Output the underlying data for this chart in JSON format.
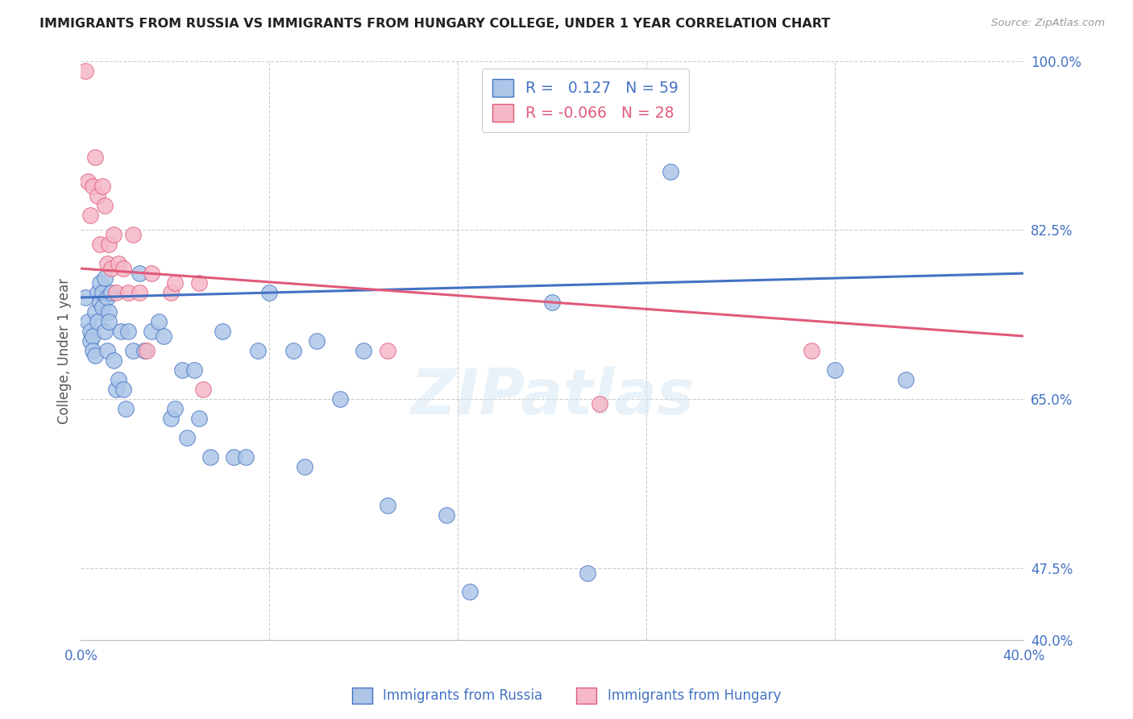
{
  "title": "IMMIGRANTS FROM RUSSIA VS IMMIGRANTS FROM HUNGARY COLLEGE, UNDER 1 YEAR CORRELATION CHART",
  "source": "Source: ZipAtlas.com",
  "ylabel": "College, Under 1 year",
  "x_min": 0.0,
  "x_max": 0.4,
  "y_min": 0.4,
  "y_max": 1.0,
  "color_russia": "#adc6e8",
  "color_hungary": "#f5b8c8",
  "color_russia_line": "#4472c4",
  "color_hungary_line": "#e05a7a",
  "R_russia": 0.127,
  "N_russia": 59,
  "R_hungary": -0.066,
  "N_hungary": 28,
  "russia_x": [
    0.002,
    0.003,
    0.004,
    0.004,
    0.005,
    0.005,
    0.006,
    0.006,
    0.007,
    0.007,
    0.008,
    0.008,
    0.009,
    0.009,
    0.01,
    0.01,
    0.011,
    0.011,
    0.012,
    0.012,
    0.013,
    0.014,
    0.015,
    0.016,
    0.017,
    0.018,
    0.019,
    0.02,
    0.022,
    0.025,
    0.027,
    0.03,
    0.033,
    0.035,
    0.038,
    0.04,
    0.043,
    0.045,
    0.048,
    0.05,
    0.055,
    0.06,
    0.065,
    0.07,
    0.075,
    0.08,
    0.09,
    0.095,
    0.1,
    0.11,
    0.12,
    0.13,
    0.155,
    0.165,
    0.2,
    0.215,
    0.25,
    0.32,
    0.35
  ],
  "russia_y": [
    0.755,
    0.73,
    0.72,
    0.71,
    0.715,
    0.7,
    0.74,
    0.695,
    0.76,
    0.73,
    0.77,
    0.75,
    0.76,
    0.745,
    0.775,
    0.72,
    0.755,
    0.7,
    0.74,
    0.73,
    0.76,
    0.69,
    0.66,
    0.67,
    0.72,
    0.66,
    0.64,
    0.72,
    0.7,
    0.78,
    0.7,
    0.72,
    0.73,
    0.715,
    0.63,
    0.64,
    0.68,
    0.61,
    0.68,
    0.63,
    0.59,
    0.72,
    0.59,
    0.59,
    0.7,
    0.76,
    0.7,
    0.58,
    0.71,
    0.65,
    0.7,
    0.54,
    0.53,
    0.45,
    0.75,
    0.47,
    0.885,
    0.68,
    0.67
  ],
  "hungary_x": [
    0.002,
    0.003,
    0.004,
    0.005,
    0.006,
    0.007,
    0.008,
    0.009,
    0.01,
    0.011,
    0.012,
    0.013,
    0.014,
    0.015,
    0.016,
    0.018,
    0.02,
    0.022,
    0.025,
    0.028,
    0.03,
    0.038,
    0.04,
    0.05,
    0.052,
    0.13,
    0.22,
    0.31
  ],
  "hungary_y": [
    0.99,
    0.875,
    0.84,
    0.87,
    0.9,
    0.86,
    0.81,
    0.87,
    0.85,
    0.79,
    0.81,
    0.785,
    0.82,
    0.76,
    0.79,
    0.785,
    0.76,
    0.82,
    0.76,
    0.7,
    0.78,
    0.76,
    0.77,
    0.77,
    0.66,
    0.7,
    0.645,
    0.7
  ],
  "watermark": "ZIPatlas",
  "background_color": "#ffffff",
  "grid_color": "#cccccc",
  "grid_linestyle": "--"
}
